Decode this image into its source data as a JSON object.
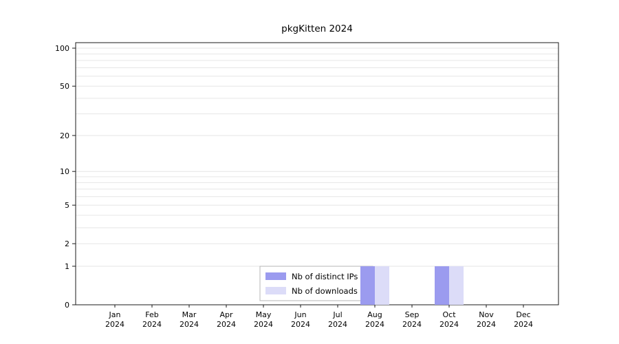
{
  "chart_data": {
    "type": "bar",
    "title": "pkgKitten 2024",
    "categories": [
      "Jan",
      "Feb",
      "Mar",
      "Apr",
      "May",
      "Jun",
      "Jul",
      "Aug",
      "Sep",
      "Oct",
      "Nov",
      "Dec"
    ],
    "year_label": "2024",
    "series": [
      {
        "name": "Nb of distinct IPs",
        "color": "#9b9bef",
        "values": [
          0,
          0,
          0,
          0,
          0,
          0,
          0,
          1,
          0,
          1,
          0,
          0
        ]
      },
      {
        "name": "Nb of downloads",
        "color": "#dcdcf8",
        "values": [
          0,
          0,
          0,
          0,
          0,
          0,
          0,
          1,
          0,
          1,
          0,
          0
        ]
      }
    ],
    "y_ticks": [
      0,
      1,
      2,
      5,
      10,
      20,
      50,
      100
    ],
    "y_scale": "log1p",
    "ylim": [
      0,
      100
    ],
    "y_gridlines": [
      1,
      2,
      3,
      4,
      5,
      6,
      7,
      8,
      9,
      10,
      20,
      30,
      40,
      50,
      60,
      70,
      80,
      90,
      100
    ],
    "grid": true,
    "legend": {
      "position": "bottom-center-inside",
      "entries": [
        "Nb of distinct IPs",
        "Nb of downloads"
      ]
    },
    "colors": {
      "grid_line": "#e6e6e6",
      "axis_frame": "#1a1a1a",
      "legend_border": "#b4b4b4"
    }
  }
}
